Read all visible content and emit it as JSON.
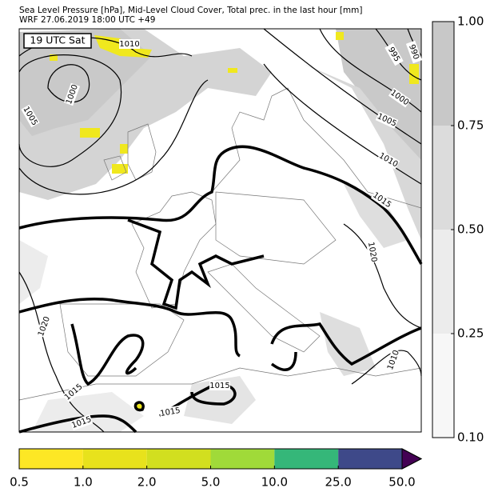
{
  "header": {
    "title": "Sea Level Pressure [hPa], Mid-Level Cloud Cover, Total prec. in the last hour [mm]",
    "subtitle": "WRF 27.06.2019 18:00 UTC +49"
  },
  "map": {
    "time_label": "19 UTC Sat",
    "contour_labels": [
      "1010",
      "1000",
      "1005",
      "995",
      "990",
      "1000",
      "1005",
      "1010",
      "1015",
      "1020",
      "1020",
      "1015",
      "1015",
      "1015",
      "1015",
      "1010"
    ]
  },
  "cloud_colorbar": {
    "ticks": [
      "0.10",
      "0.25",
      "0.50",
      "0.75",
      "1.00"
    ],
    "colors": [
      "#f7f7f7",
      "#ececec",
      "#dcdcdc",
      "#c8c8c8"
    ]
  },
  "precip_colorbar": {
    "ticks": [
      "0.5",
      "1.0",
      "2.0",
      "5.0",
      "10.0",
      "25.0",
      "50.0"
    ],
    "colors": [
      "#fde725",
      "#e8e21c",
      "#d2df1f",
      "#a0da39",
      "#35b779",
      "#3e4989"
    ],
    "extend_color": "#440154"
  }
}
